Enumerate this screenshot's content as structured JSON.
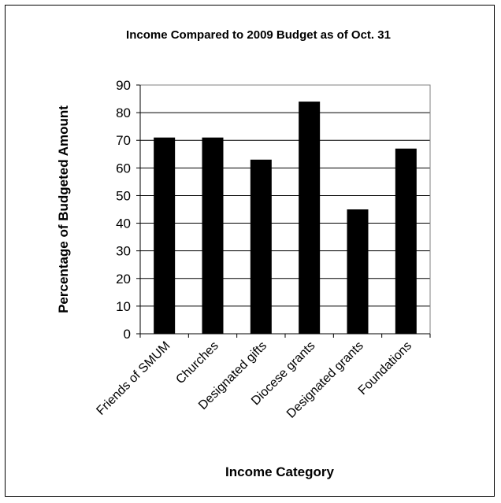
{
  "chart_data": {
    "type": "bar",
    "title": "Income Compared to 2009 Budget as of Oct. 31",
    "xlabel": "Income Category",
    "ylabel": "Percentage of Budgeted Amount",
    "categories": [
      "Friends of SMUM",
      "Churches",
      "Designated gifts",
      "Diocese grants",
      "Designated grants",
      "Foundations"
    ],
    "values": [
      71,
      71,
      63,
      84,
      45,
      67
    ],
    "ylim": [
      0,
      90
    ],
    "yticks": [
      0,
      10,
      20,
      30,
      40,
      50,
      60,
      70,
      80,
      90
    ],
    "grid": true,
    "legend": "none",
    "colors": {
      "bar": "#000000",
      "grid": "#000000",
      "border": "#808080"
    }
  }
}
